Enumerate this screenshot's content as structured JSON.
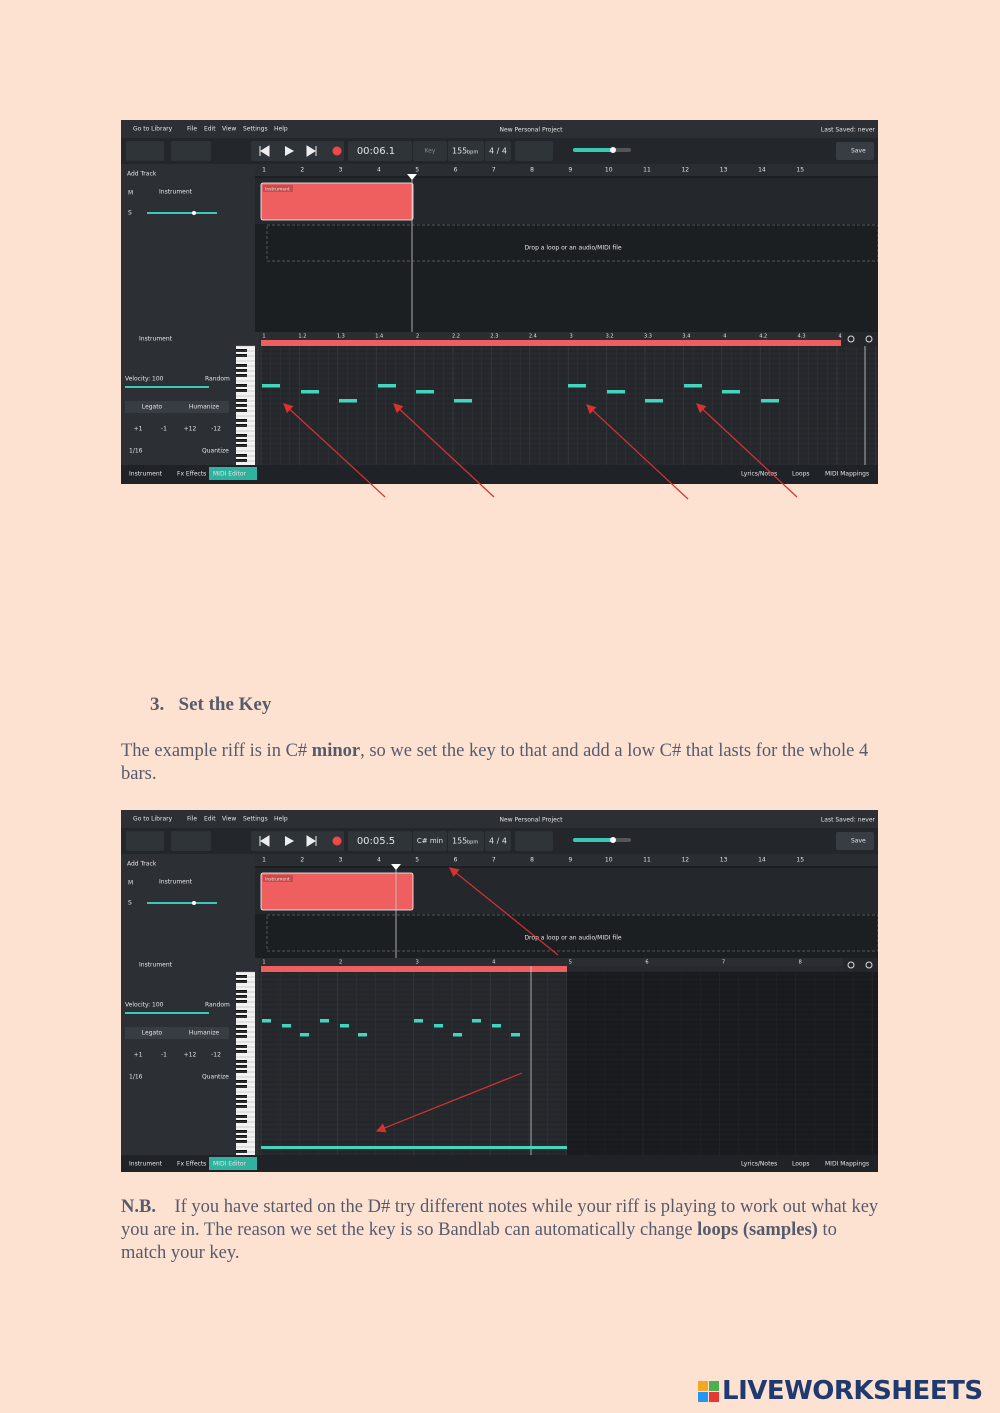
{
  "section": {
    "number": "3.",
    "title": "Set the Key"
  },
  "intro": {
    "parts": [
      "The example riff is in C# ",
      "minor",
      ", so we set the key to that and add a low C# that lasts for the whole 4 bars."
    ]
  },
  "note": {
    "label": "N.B.",
    "parts": [
      "If you have started on the D# try different notes while your riff is playing to work out what key you are in.  The reason we set the key is so Bandlab can automatically change ",
      "loops (samples)",
      " to match your key."
    ]
  },
  "screenshots": [
    {
      "library": "Go to Library",
      "menu": [
        "File",
        "Edit",
        "View",
        "Settings",
        "Help"
      ],
      "project": "New Personal Project",
      "saved": "Last Saved: never",
      "time": "00:06.1",
      "key": "Key",
      "bpm": "155",
      "bpm_unit": "bpm",
      "signature": "4 / 4",
      "save": "Save",
      "add_track": "Add Track",
      "mute": "M",
      "solo": "S",
      "track": "Instrument",
      "clip": "Instrument",
      "ruler": [
        1,
        2,
        3,
        4,
        5,
        6,
        7,
        8,
        9,
        10,
        11,
        12,
        13,
        14,
        15
      ],
      "drop": "Drop a loop or an audio/MIDI file",
      "editor_title": "Instrument",
      "velocity": "Velocity: 100",
      "random": "Random",
      "legato": "Legato",
      "humanize": "Humanize",
      "transpose": [
        "+1",
        "-1",
        "+12",
        "-12"
      ],
      "grid": "1/16",
      "quantize": "Quantize",
      "editor_ruler": [
        1,
        1.2,
        1.3,
        1.4,
        2,
        2.2,
        2.3,
        2.4,
        3,
        3.2,
        3.3,
        3.4,
        4,
        4.2,
        4.3,
        4
      ],
      "tabs_left": [
        "Instrument",
        "Fx Effects",
        "MIDI Editor"
      ],
      "tabs_right": [
        "Lyrics/Notes",
        "Loops",
        "MIDI Mappings"
      ]
    },
    {
      "library": "Go to Library",
      "menu": [
        "File",
        "Edit",
        "View",
        "Settings",
        "Help"
      ],
      "project": "New Personal Project",
      "saved": "Last Saved: never",
      "time": "00:05.5",
      "key": "C# min",
      "bpm": "155",
      "bpm_unit": "bpm",
      "signature": "4 / 4",
      "save": "Save",
      "add_track": "Add Track",
      "mute": "M",
      "solo": "S",
      "track": "Instrument",
      "clip": "Instrument",
      "ruler": [
        1,
        2,
        3,
        4,
        5,
        6,
        7,
        8,
        9,
        10,
        11,
        12,
        13,
        14,
        15
      ],
      "drop": "Drop a loop or an audio/MIDI file",
      "editor_title": "Instrument",
      "velocity": "Velocity: 100",
      "random": "Random",
      "legato": "Legato",
      "humanize": "Humanize",
      "transpose": [
        "+1",
        "-1",
        "+12",
        "-12"
      ],
      "grid": "1/16",
      "quantize": "Quantize",
      "editor_ruler": [
        1,
        2,
        3,
        4,
        5,
        6,
        7,
        8
      ],
      "tabs_left": [
        "Instrument",
        "Fx Effects",
        "MIDI Editor"
      ],
      "tabs_right": [
        "Lyrics/Notes",
        "Loops",
        "MIDI Mappings"
      ]
    }
  ],
  "logo": "LIVEWORKSHEETS"
}
